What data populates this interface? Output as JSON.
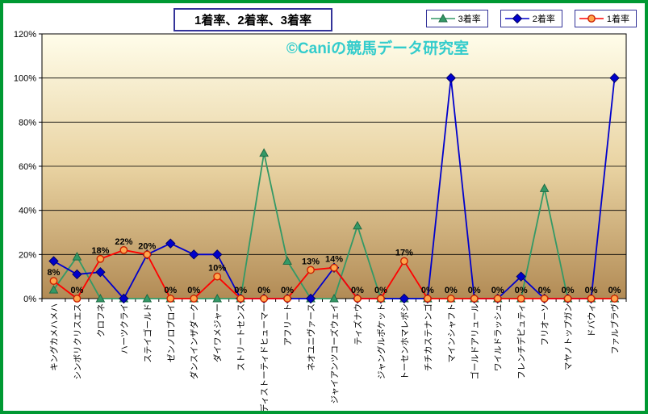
{
  "watermark": {
    "text": "©Caniの競馬データ研究室",
    "color": "#33CCCC"
  },
  "chart_data": {
    "type": "line",
    "title": "1着率、2着率、3着率",
    "legend_position": "top-right",
    "grid": true,
    "ylim": [
      0,
      120
    ],
    "y_ticks": [
      "0%",
      "20%",
      "40%",
      "60%",
      "80%",
      "100%",
      "120%"
    ],
    "plot_gradient": [
      "#FFFDEA",
      "#E9D3A2",
      "#B28B55"
    ],
    "categories": [
      "キングカメハメハ",
      "シンボリクリスエス",
      "クロフネ",
      "ハーツクライ",
      "ステイゴールド",
      "ゼンノロブロイ",
      "ダンスインザダーク",
      "ダイワメジャー",
      "ストリートセンス",
      "ディストーティドヒューマー",
      "アフリート",
      "ネオユニヴァース",
      "ジャイアンツコーズウェイ",
      "ティズナウ",
      "ジャングルポケット",
      "トーセンホマレボシ",
      "チチカステナンゴ",
      "マインシャフト",
      "ゴールドアリュール",
      "ワイルドラッシュ",
      "フレンチデピュティ",
      "フリオーソ",
      "マヤノトップガン",
      "ドバウィ",
      "ファルブラヴ"
    ],
    "series": [
      {
        "id": "third-place-rate",
        "name": "3着率",
        "color": "#339966",
        "marker": "triangle",
        "marker_fill": "#339966",
        "marker_stroke": "#1F6B45",
        "values": [
          4,
          19,
          0,
          0,
          0,
          0,
          0,
          0,
          0,
          66,
          17,
          0,
          0,
          33,
          0,
          0,
          0,
          0,
          0,
          0,
          0,
          50,
          0,
          0,
          0
        ]
      },
      {
        "id": "second-place-rate",
        "name": "2着率",
        "color": "#0000CC",
        "marker": "diamond",
        "marker_fill": "#0000CC",
        "marker_stroke": "#000066",
        "values": [
          17,
          11,
          12,
          0,
          20,
          25,
          20,
          20,
          0,
          0,
          0,
          0,
          14,
          0,
          0,
          0,
          0,
          100,
          0,
          0,
          10,
          0,
          0,
          0,
          100
        ]
      },
      {
        "id": "first-place-rate",
        "name": "1着率",
        "color": "#FF0000",
        "marker": "circle",
        "marker_fill": "#FFA64D",
        "marker_stroke": "#CC2200",
        "data_labels": true,
        "data_label_suffix": "%",
        "values": [
          8,
          0,
          18,
          22,
          20,
          0,
          0,
          10,
          0,
          0,
          0,
          13,
          14,
          0,
          0,
          17,
          0,
          0,
          0,
          0,
          0,
          0,
          0,
          0,
          0
        ]
      }
    ]
  }
}
